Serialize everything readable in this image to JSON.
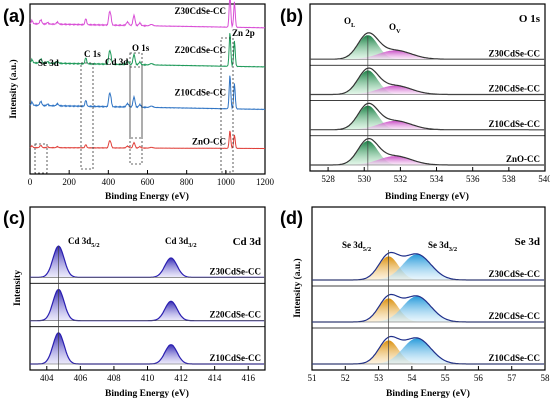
{
  "chart_data": [
    {
      "panel": "(a)",
      "type": "line",
      "xlabel": "Binding Energy (eV)",
      "ylabel": "Intensity (a.u.)",
      "xlim": [
        0,
        1200
      ],
      "xticks": [
        "0",
        "200",
        "400",
        "600",
        "800",
        "1000",
        "1200"
      ],
      "peak_labels": [
        "Se 3d",
        "C 1s",
        "Cd 3d",
        "O 1s",
        "Zn 2p"
      ],
      "peaks_ev": [
        55,
        285,
        405,
        531,
        1021,
        1044
      ],
      "series": [
        {
          "name": "Z30CdSe-CC",
          "color": "#d94fd6",
          "baseline": 0.86
        },
        {
          "name": "Z20CdSe-CC",
          "color": "#1f9a5a",
          "baseline": 0.63
        },
        {
          "name": "Z10CdSe-CC",
          "color": "#2f74c4",
          "baseline": 0.38
        },
        {
          "name": "ZnO-CC",
          "color": "#e0403a",
          "baseline": 0.15
        }
      ]
    },
    {
      "panel": "(b)",
      "type": "area",
      "title": "O 1s",
      "xlabel": "Binding Energy (eV)",
      "xlim": [
        527,
        540
      ],
      "xticks": [
        "528",
        "530",
        "532",
        "534",
        "536",
        "538",
        "540"
      ],
      "peak_labels": [
        "O",
        "L",
        "O",
        "V"
      ],
      "peaks_ev": [
        530.2,
        531.6
      ],
      "fill_colors": [
        "#1f9a5a",
        "#d94fd6"
      ],
      "series": [
        {
          "name": "Z30CdSe-CC"
        },
        {
          "name": "Z20CdSe-CC"
        },
        {
          "name": "Z10CdSe-CC"
        },
        {
          "name": "ZnO-CC"
        }
      ]
    },
    {
      "panel": "(c)",
      "type": "area",
      "title": "Cd 3d",
      "xlabel": "Binding Energy (eV)",
      "ylabel": "Intensity",
      "xlim": [
        403,
        417
      ],
      "xticks": [
        "404",
        "406",
        "408",
        "410",
        "412",
        "414",
        "416"
      ],
      "peak_labels": [
        "Cd 3d",
        "5/2",
        "Cd 3d",
        "3/2"
      ],
      "peaks_ev": [
        404.7,
        411.4
      ],
      "fill_colors": [
        "#3f33c8"
      ],
      "series": [
        {
          "name": "Z30CdSe-CC"
        },
        {
          "name": "Z20CdSe-CC"
        },
        {
          "name": "Z10CdSe-CC"
        }
      ]
    },
    {
      "panel": "(d)",
      "type": "area",
      "title": "Se 3d",
      "xlabel": "Binding Energy (eV)",
      "ylabel": "Intensity (a.u.)",
      "xlim": [
        51,
        58
      ],
      "xticks": [
        "51",
        "52",
        "53",
        "54",
        "55",
        "56",
        "57",
        "58"
      ],
      "peak_labels": [
        "Se 3d",
        "5/2",
        "Se 3d",
        "3/2"
      ],
      "peaks_ev": [
        53.3,
        54.2
      ],
      "fill_colors": [
        "#e2a11f",
        "#3db3e8"
      ],
      "series": [
        {
          "name": "Z30CdSe-CC"
        },
        {
          "name": "Z20CdSe-CC"
        },
        {
          "name": "Z10CdSe-CC"
        }
      ]
    }
  ]
}
